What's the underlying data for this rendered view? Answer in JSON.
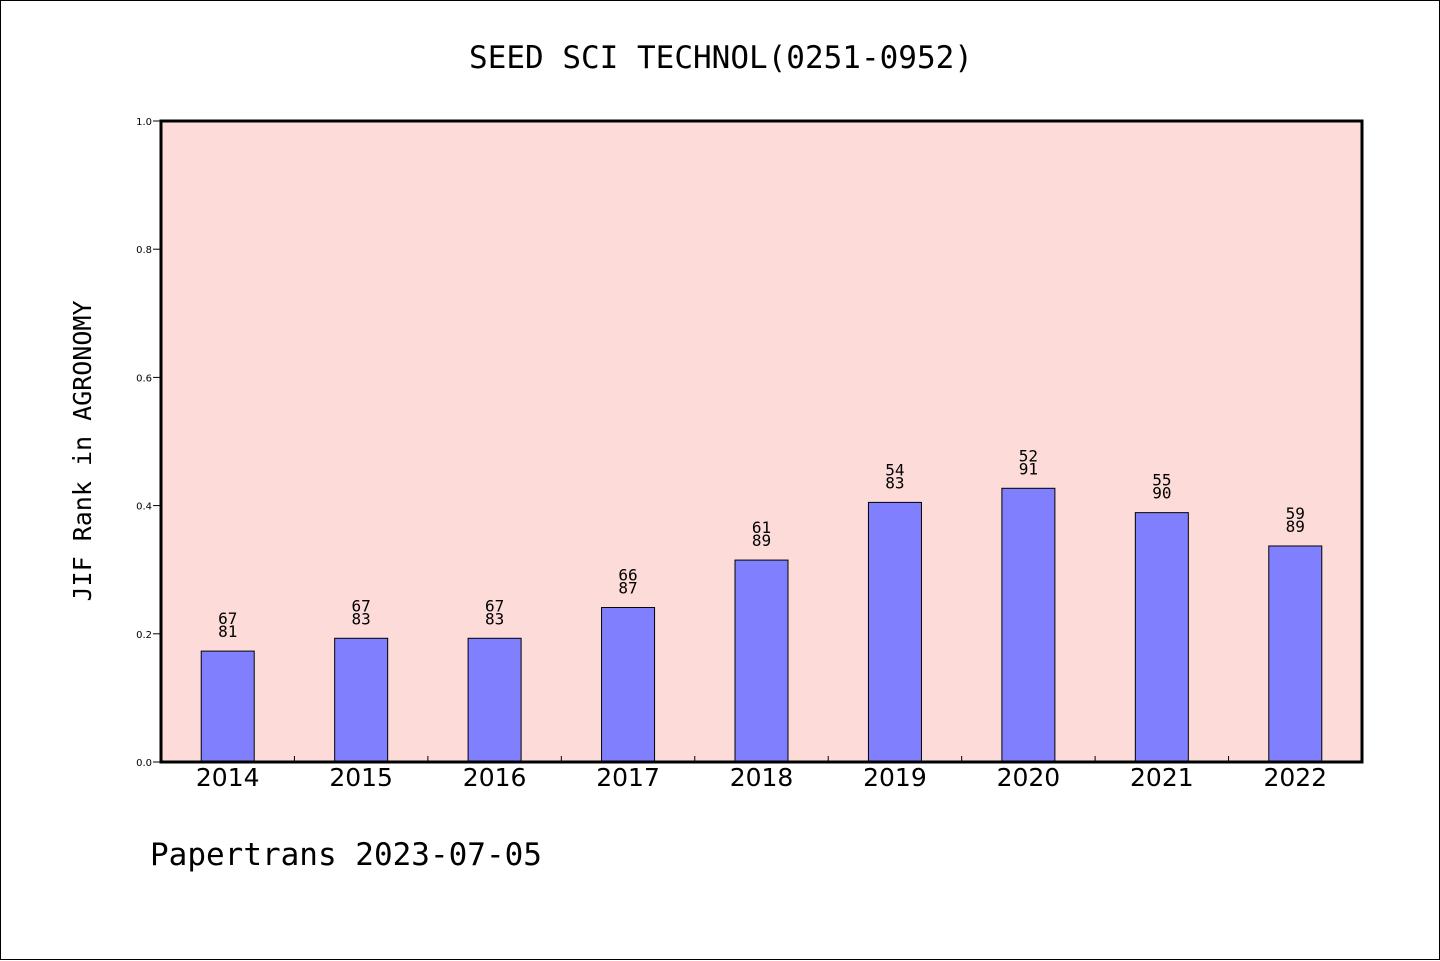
{
  "chart_data": {
    "type": "bar",
    "title": "SEED SCI TECHNOL(0251-0952)",
    "ylabel": "JIF Rank in AGRONOMY",
    "xlabel": "",
    "categories": [
      "2014",
      "2015",
      "2016",
      "2017",
      "2018",
      "2019",
      "2020",
      "2021",
      "2022"
    ],
    "values": [
      0.173,
      0.193,
      0.193,
      0.241,
      0.315,
      0.405,
      0.427,
      0.389,
      0.337
    ],
    "rank": [
      "67",
      "67",
      "67",
      "66",
      "61",
      "54",
      "52",
      "55",
      "59"
    ],
    "total": [
      "81",
      "83",
      "83",
      "87",
      "89",
      "83",
      "91",
      "90",
      "89"
    ],
    "ylim": [
      0,
      1.0
    ],
    "yticks": [
      "0.0",
      "0.2",
      "0.4",
      "0.6",
      "0.8",
      "1.0"
    ],
    "grid": false,
    "colors": {
      "bar_fill": "#8080ff",
      "plot_background": "#fddbd8",
      "axis": "#000000"
    }
  },
  "footer": {
    "text": "Papertrans 2023-07-05"
  }
}
